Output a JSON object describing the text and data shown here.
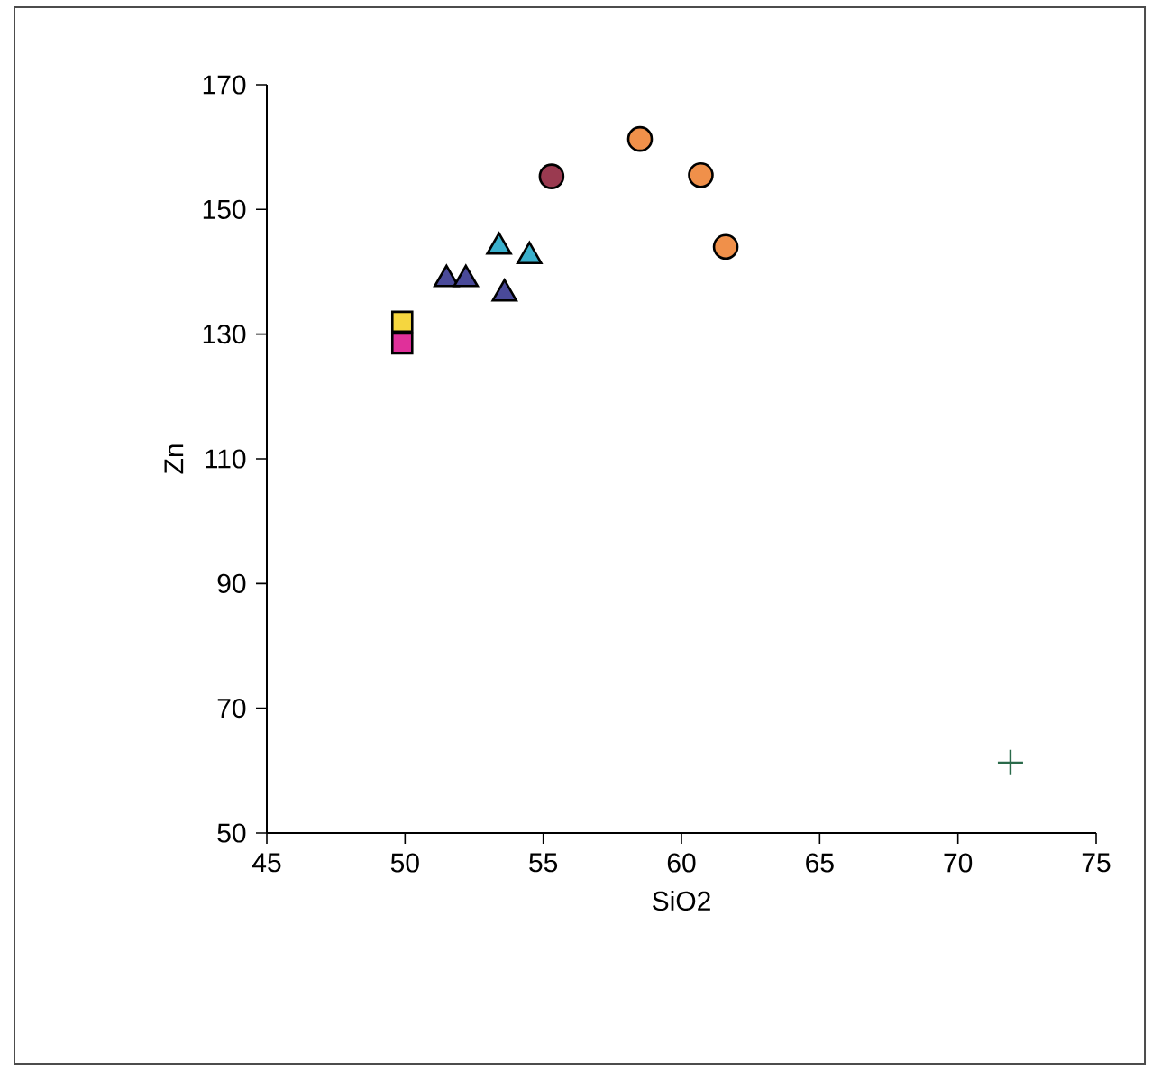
{
  "chart_data": {
    "type": "scatter",
    "xlabel": "SiO2",
    "ylabel": "Zn",
    "xlim": [
      45,
      75
    ],
    "xticks": [
      45,
      50,
      55,
      60,
      65,
      70,
      75
    ],
    "ylim": [
      50,
      170
    ],
    "yticks": [
      50,
      70,
      90,
      110,
      130,
      150,
      170
    ],
    "grid": false,
    "series": [
      {
        "color": "#f5d63f",
        "marker": "square",
        "x": [
          49.9
        ],
        "values": [
          132
        ]
      },
      {
        "color": "#e0309a",
        "marker": "square",
        "x": [
          49.9
        ],
        "values": [
          128.5
        ]
      },
      {
        "color": "#4a4a9a",
        "marker": "triangle",
        "x": [
          51.5,
          52.2,
          53.6
        ],
        "values": [
          138.8,
          138.8,
          136.5
        ]
      },
      {
        "color": "#3ab0cc",
        "marker": "triangle",
        "x": [
          53.4,
          54.5
        ],
        "values": [
          144,
          142.5
        ]
      },
      {
        "color": "#9a3a50",
        "marker": "circle",
        "x": [
          55.3
        ],
        "values": [
          155.3
        ]
      },
      {
        "color": "#f0904a",
        "marker": "circle",
        "x": [
          58.5,
          60.7,
          61.6
        ],
        "values": [
          161.3,
          155.5,
          144
        ]
      },
      {
        "color": "#2a6a4a",
        "marker": "cross",
        "x": [
          71.9
        ],
        "values": [
          61.3
        ]
      }
    ]
  }
}
